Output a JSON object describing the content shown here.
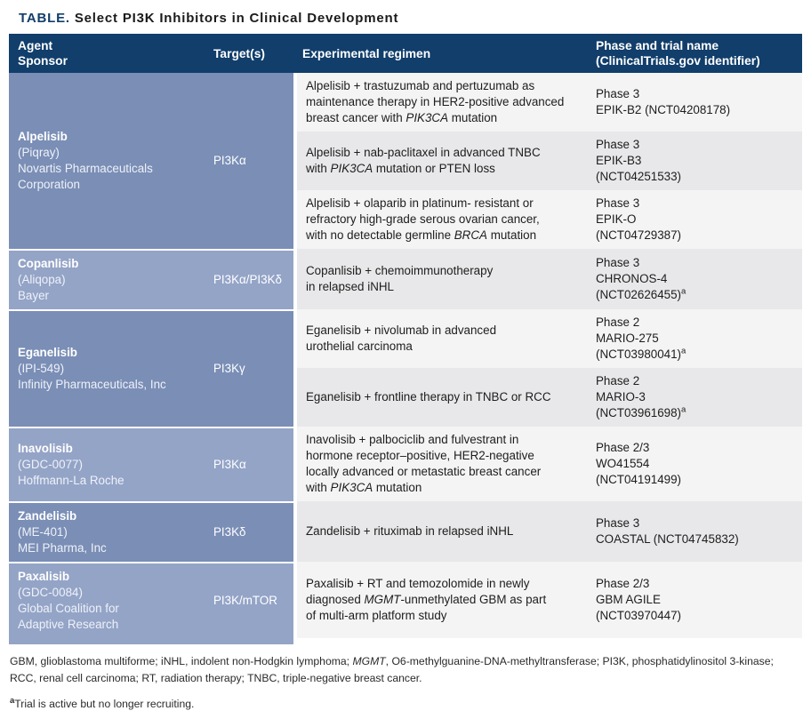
{
  "title": {
    "label": "TABLE.",
    "text": "Select PI3K Inhibitors in Clinical Development"
  },
  "colors": {
    "header_bg": "#113e6b",
    "row_blue_dark": "#7a8eb6",
    "row_blue_light": "#94a4c7",
    "stripe_light": "#f4f4f5",
    "stripe_gray": "#e8e8ea"
  },
  "table": {
    "headers": [
      {
        "key": "agent-sponsor",
        "lines": [
          "Agent",
          "Sponsor"
        ]
      },
      {
        "key": "targets",
        "lines": [
          "Target(s)"
        ]
      },
      {
        "key": "experimental-regimen",
        "lines": [
          "Experimental regimen"
        ]
      },
      {
        "key": "phase-trial-name",
        "lines": [
          "Phase and trial name",
          "(ClinicalTrials.gov identifier)"
        ]
      }
    ],
    "groups": [
      {
        "agent": {
          "name": "Alpelisib",
          "lines": [
            "(Piqray)",
            "Novartis Pharmaceuticals",
            "Corporation"
          ]
        },
        "target": "PI3Kα",
        "trials": [
          {
            "regimen": [
              {
                "t": "Alpelisib + trastuzumab and pertuzumab as\nmaintenance therapy in HER2-positive advanced\nbreast cancer with "
              },
              {
                "t": "PIK3CA",
                "i": 1
              },
              {
                "t": " mutation"
              }
            ],
            "phase": [
              "Phase 3",
              "EPIK-B2 (NCT04208178)"
            ]
          },
          {
            "regimen": [
              {
                "t": "Alpelisib + nab-paclitaxel in advanced TNBC\nwith "
              },
              {
                "t": "PIK3CA",
                "i": 1
              },
              {
                "t": " mutation or PTEN loss"
              }
            ],
            "phase": [
              "Phase 3",
              "EPIK-B3",
              "(NCT04251533)"
            ]
          },
          {
            "regimen": [
              {
                "t": "Alpelisib + olaparib in platinum- resistant or\nrefractory high-grade serous ovarian cancer,\nwith no detectable germline "
              },
              {
                "t": "BRCA",
                "i": 1
              },
              {
                "t": " mutation"
              }
            ],
            "phase": [
              "Phase 3",
              "EPIK-O",
              "(NCT04729387)"
            ]
          }
        ]
      },
      {
        "agent": {
          "name": "Copanlisib",
          "lines": [
            "(Aliqopa)",
            "Bayer"
          ]
        },
        "target": "PI3Kα/PI3Kδ",
        "trials": [
          {
            "regimen": [
              {
                "t": "Copanlisib + chemoimmunotherapy\nin relapsed iNHL"
              }
            ],
            "phase": [
              "Phase 3",
              "CHRONOS-4",
              {
                "t": "(NCT02626455)",
                "sup": "a"
              }
            ]
          }
        ]
      },
      {
        "agent": {
          "name": "Eganelisib",
          "lines": [
            "(IPI-549)",
            "Infinity Pharmaceuticals, Inc"
          ]
        },
        "target": "PI3Kγ",
        "trials": [
          {
            "regimen": [
              {
                "t": "Eganelisib + nivolumab in advanced\nurothelial carcinoma"
              }
            ],
            "phase": [
              "Phase 2",
              "MARIO-275",
              {
                "t": "(NCT03980041)",
                "sup": "a"
              }
            ]
          },
          {
            "regimen": [
              {
                "t": "Eganelisib + frontline therapy in TNBC or RCC"
              }
            ],
            "phase": [
              "Phase 2",
              "MARIO-3",
              {
                "t": "(NCT03961698)",
                "sup": "a"
              }
            ]
          }
        ]
      },
      {
        "agent": {
          "name": "Inavolisib",
          "lines": [
            "(GDC-0077)",
            "Hoffmann-La Roche"
          ]
        },
        "target": "PI3Kα",
        "trials": [
          {
            "regimen": [
              {
                "t": "Inavolisib + palbociclib and fulvestrant in\nhormone receptor–positive, HER2-negative\nlocally advanced or metastatic breast cancer\nwith "
              },
              {
                "t": "PIK3CA",
                "i": 1
              },
              {
                "t": " mutation"
              }
            ],
            "phase": [
              "Phase 2/3",
              "WO41554",
              "(NCT04191499)"
            ]
          }
        ]
      },
      {
        "agent": {
          "name": "Zandelisib",
          "lines": [
            "(ME-401)",
            "MEI Pharma, Inc"
          ]
        },
        "target": "PI3Kδ",
        "trials": [
          {
            "regimen": [
              {
                "t": "Zandelisib + rituximab in relapsed iNHL"
              }
            ],
            "phase": [
              "Phase 3",
              "COASTAL (NCT04745832)"
            ]
          }
        ]
      },
      {
        "agent": {
          "name": "Paxalisib",
          "lines": [
            "(GDC-0084)",
            "Global Coalition for",
            "Adaptive Research"
          ]
        },
        "target": "PI3K/mTOR",
        "trials": [
          {
            "regimen": [
              {
                "t": "Paxalisib + RT and temozolomide in newly\ndiagnosed "
              },
              {
                "t": "MGMT",
                "i": 1
              },
              {
                "t": "-unmethylated GBM as part\nof multi-arm platform study"
              }
            ],
            "phase": [
              "Phase 2/3",
              "GBM AGILE",
              "(NCT03970447)"
            ]
          }
        ]
      }
    ]
  },
  "footnotes": {
    "abbreviations": [
      {
        "t": "GBM, glioblastoma multiforme; iNHL, indolent non-Hodgkin lymphoma; "
      },
      {
        "t": "MGMT",
        "i": 1
      },
      {
        "t": ", O6-methylguanine-DNA-methyltransferase; PI3K, phosphatidylinositol 3-kinase;\nRCC, renal cell carcinoma; RT, radiation therapy; TNBC, triple-negative breast cancer."
      }
    ],
    "note": {
      "sup": "a",
      "t": "Trial is active but no longer recruiting."
    }
  }
}
